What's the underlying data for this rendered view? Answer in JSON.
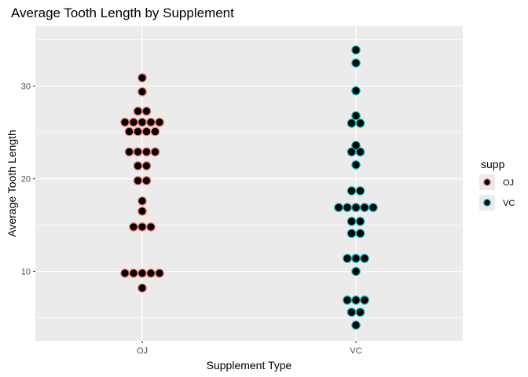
{
  "chart_data": {
    "type": "scatter",
    "subtype": "dotplot",
    "title": "Average Tooth Length by Supplement",
    "xlabel": "Supplement Type",
    "ylabel": "Average Tooth Length",
    "categories": [
      "OJ",
      "VC"
    ],
    "ylim": [
      2.5,
      36.5
    ],
    "yticks": [
      10,
      20,
      30
    ],
    "grid": true,
    "legend": {
      "title": "supp",
      "position": "right",
      "entries": [
        {
          "label": "OJ",
          "color": "#f8766d"
        },
        {
          "label": "VC",
          "color": "#00bfc4"
        }
      ]
    },
    "series": [
      {
        "name": "OJ",
        "color": "#f8766d",
        "bins": [
          {
            "y": 8.2,
            "count": 1
          },
          {
            "y": 9.8,
            "count": 5
          },
          {
            "y": 14.8,
            "count": 3
          },
          {
            "y": 16.5,
            "count": 1
          },
          {
            "y": 17.6,
            "count": 1
          },
          {
            "y": 19.8,
            "count": 2
          },
          {
            "y": 21.4,
            "count": 2
          },
          {
            "y": 22.9,
            "count": 4
          },
          {
            "y": 25.1,
            "count": 4
          },
          {
            "y": 26.1,
            "count": 5
          },
          {
            "y": 27.3,
            "count": 2
          },
          {
            "y": 29.4,
            "count": 1
          },
          {
            "y": 30.9,
            "count": 1
          }
        ]
      },
      {
        "name": "VC",
        "color": "#00bfc4",
        "bins": [
          {
            "y": 4.2,
            "count": 1
          },
          {
            "y": 5.6,
            "count": 2
          },
          {
            "y": 6.9,
            "count": 3
          },
          {
            "y": 10.0,
            "count": 1
          },
          {
            "y": 11.4,
            "count": 3
          },
          {
            "y": 14.1,
            "count": 2
          },
          {
            "y": 15.4,
            "count": 2
          },
          {
            "y": 16.9,
            "count": 5
          },
          {
            "y": 18.7,
            "count": 2
          },
          {
            "y": 21.5,
            "count": 1
          },
          {
            "y": 22.9,
            "count": 2
          },
          {
            "y": 23.6,
            "count": 1
          },
          {
            "y": 26.0,
            "count": 2
          },
          {
            "y": 26.8,
            "count": 1
          },
          {
            "y": 29.5,
            "count": 1
          },
          {
            "y": 32.5,
            "count": 1
          },
          {
            "y": 33.9,
            "count": 1
          }
        ]
      }
    ]
  },
  "colors": {
    "panel_background": "#ebebeb",
    "gridline": "#ffffff",
    "dot_fill": "#000000"
  }
}
